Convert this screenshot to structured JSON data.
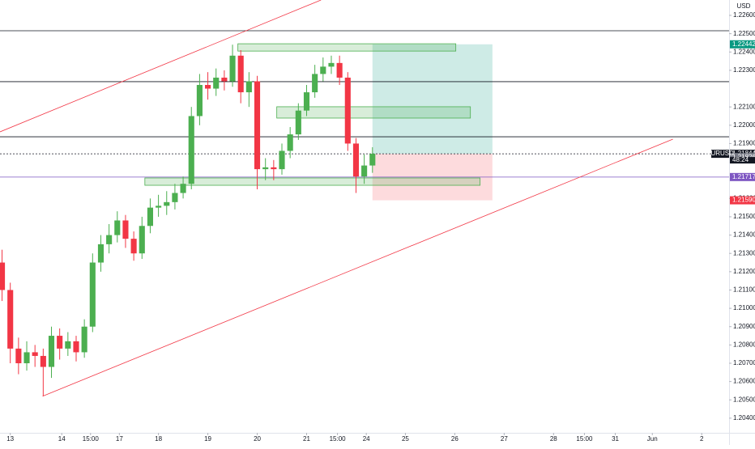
{
  "chart_data": {
    "type": "candlestick",
    "symbol": "EURUSD",
    "currency": "USD",
    "countdown": "48:24",
    "up_color": "#4caf50",
    "down_color": "#f23645",
    "x": [
      -4,
      0,
      4,
      8,
      12,
      16,
      20,
      24,
      28,
      32,
      36,
      40,
      44,
      48,
      52,
      56,
      60,
      64,
      68,
      72,
      76,
      80,
      84,
      88,
      92,
      96,
      100,
      104,
      108,
      112,
      116,
      120,
      124,
      128,
      132,
      136,
      140,
      144,
      148,
      152,
      156,
      160,
      164,
      168,
      172,
      176
    ],
    "open": [
      1.2125,
      1.211,
      1.2078,
      1.207,
      1.2076,
      1.2074,
      1.2068,
      1.2085,
      1.2078,
      1.2082,
      1.2076,
      1.209,
      1.2125,
      1.2135,
      1.214,
      1.2148,
      1.2138,
      1.213,
      1.2145,
      1.2155,
      1.2156,
      1.2158,
      1.2163,
      1.2168,
      1.2205,
      1.2222,
      1.222,
      1.2226,
      1.2224,
      1.2238,
      1.2218,
      1.2224,
      1.2176,
      1.2177,
      1.2176,
      1.2186,
      1.2195,
      1.2208,
      1.2218,
      1.2228,
      1.2232,
      1.2234,
      1.2226,
      1.219,
      1.2172,
      1.2178
    ],
    "high": [
      1.2132,
      1.2114,
      1.2084,
      1.2082,
      1.208,
      1.2078,
      1.209,
      1.2089,
      1.2087,
      1.2085,
      1.2094,
      1.213,
      1.214,
      1.2146,
      1.2153,
      1.2151,
      1.2142,
      1.215,
      1.216,
      1.2162,
      1.2164,
      1.2168,
      1.2172,
      1.221,
      1.2228,
      1.2229,
      1.2231,
      1.223,
      1.2244,
      1.2241,
      1.2229,
      1.2227,
      1.2182,
      1.2181,
      1.219,
      1.2199,
      1.2212,
      1.2222,
      1.2233,
      1.2237,
      1.2238,
      1.2238,
      1.2229,
      1.2193,
      1.2184,
      1.2188
    ],
    "low": [
      1.2104,
      1.207,
      1.2064,
      1.2066,
      1.2068,
      1.2052,
      1.2062,
      1.2072,
      1.2074,
      1.2071,
      1.2073,
      1.2087,
      1.212,
      1.213,
      1.2136,
      1.2133,
      1.2126,
      1.2127,
      1.2141,
      1.215,
      1.2151,
      1.2154,
      1.216,
      1.2165,
      1.22,
      1.2214,
      1.2216,
      1.2219,
      1.2221,
      1.2212,
      1.221,
      1.2165,
      1.217,
      1.217,
      1.2173,
      1.2182,
      1.2192,
      1.2205,
      1.2215,
      1.2224,
      1.2228,
      1.2222,
      1.2186,
      1.2163,
      1.2168,
      1.2174
    ],
    "close": [
      1.211,
      1.2078,
      1.207,
      1.2076,
      1.2074,
      1.2068,
      1.2085,
      1.2078,
      1.2082,
      1.2076,
      1.209,
      1.2125,
      1.2135,
      1.214,
      1.2148,
      1.2138,
      1.213,
      1.2145,
      1.2155,
      1.2156,
      1.2158,
      1.2163,
      1.2168,
      1.2205,
      1.2222,
      1.222,
      1.2226,
      1.2224,
      1.2238,
      1.2218,
      1.2224,
      1.2176,
      1.2177,
      1.2176,
      1.2186,
      1.2195,
      1.2208,
      1.2218,
      1.2228,
      1.2232,
      1.2234,
      1.2226,
      1.219,
      1.2172,
      1.2178,
      1.21844
    ],
    "xlim": [
      -5,
      349.3
    ],
    "ylim": [
      1.2032,
      1.22684
    ],
    "xticks": [
      {
        "value": 0,
        "label": "13"
      },
      {
        "value": 25,
        "label": "14"
      },
      {
        "value": 39,
        "label": "15:00"
      },
      {
        "value": 53,
        "label": "17"
      },
      {
        "value": 72,
        "label": "18"
      },
      {
        "value": 96,
        "label": "19"
      },
      {
        "value": 120,
        "label": "20"
      },
      {
        "value": 144,
        "label": "21"
      },
      {
        "value": 159,
        "label": "15:00"
      },
      {
        "value": 173,
        "label": "24"
      },
      {
        "value": 192,
        "label": "25"
      },
      {
        "value": 216,
        "label": "26"
      },
      {
        "value": 240,
        "label": "27"
      },
      {
        "value": 264,
        "label": "28"
      },
      {
        "value": 279,
        "label": "15:00"
      },
      {
        "value": 294,
        "label": "31"
      },
      {
        "value": 312,
        "label": "Jun"
      },
      {
        "value": 336,
        "label": "2"
      }
    ],
    "yticks": [
      {
        "value": 1.204,
        "label": "1.20400"
      },
      {
        "value": 1.205,
        "label": "1.20500"
      },
      {
        "value": 1.206,
        "label": "1.20600"
      },
      {
        "value": 1.207,
        "label": "1.20700"
      },
      {
        "value": 1.208,
        "label": "1.20800"
      },
      {
        "value": 1.209,
        "label": "1.20900"
      },
      {
        "value": 1.21,
        "label": "1.21000"
      },
      {
        "value": 1.211,
        "label": "1.21100"
      },
      {
        "value": 1.212,
        "label": "1.21200"
      },
      {
        "value": 1.213,
        "label": "1.21300"
      },
      {
        "value": 1.214,
        "label": "1.21400"
      },
      {
        "value": 1.215,
        "label": "1.21500"
      },
      {
        "value": 1.216,
        "label": "1.21600"
      },
      {
        "value": 1.219,
        "label": "1.21900"
      },
      {
        "value": 1.22,
        "label": "1.22000"
      },
      {
        "value": 1.221,
        "label": "1.22100"
      },
      {
        "value": 1.223,
        "label": "1.22300"
      },
      {
        "value": 1.224,
        "label": "1.22400"
      },
      {
        "value": 1.225,
        "label": "1.22500"
      },
      {
        "value": 1.226,
        "label": "1.22600"
      }
    ],
    "price_tags": [
      {
        "value": 1.22442,
        "color": "#089981"
      },
      {
        "value": 1.21844,
        "color": "#131722"
      },
      {
        "value": 1.21826,
        "color": "#787b86"
      },
      {
        "value": 1.21717,
        "color": "#7e57c2"
      },
      {
        "value": {
          "value": 1.2159,
          "label": "1.21590"
        },
        "color": "#f23645"
      }
    ],
    "hlines": [
      {
        "value": 1.22516,
        "color": "#131722",
        "dash": false
      },
      {
        "value": 1.22238,
        "color": "#131722",
        "dash": false
      },
      {
        "value": 1.21937,
        "color": "#131722",
        "dash": false
      },
      {
        "value": 1.21844,
        "color": "#131722",
        "dash": true
      },
      {
        "value": 1.21717,
        "color": "#7e57c2",
        "dash": false
      }
    ],
    "trendlines": [
      {
        "x": [
          -5,
          151
        ],
        "y": [
          1.21964,
          1.22684
        ],
        "color": "#f23645"
      },
      {
        "x": [
          15.7,
          322
        ],
        "y": [
          1.2052,
          1.21924
        ],
        "color": "#f23645"
      }
    ],
    "zones": [
      {
        "x": [
          110.6,
          216.5
        ],
        "y": [
          1.22445,
          1.22405
        ],
        "color": "#4caf50"
      },
      {
        "x": [
          129.5,
          223.6
        ],
        "y": [
          1.22101,
          1.22039
        ],
        "color": "#4caf50"
      },
      {
        "x": [
          65.4,
          228.3
        ],
        "y": [
          1.21712,
          1.21672
        ],
        "color": "#4caf50"
      }
    ],
    "position": {
      "x": [
        176,
        234.3
      ],
      "entry": 1.21844,
      "target": 1.22442,
      "stop": 1.2159
    }
  }
}
